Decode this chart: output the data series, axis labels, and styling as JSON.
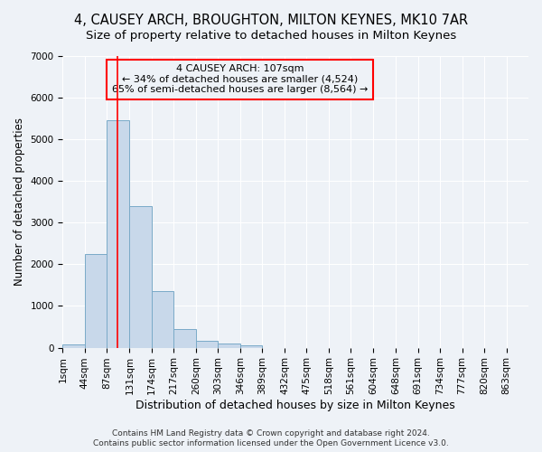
{
  "title": "4, CAUSEY ARCH, BROUGHTON, MILTON KEYNES, MK10 7AR",
  "subtitle": "Size of property relative to detached houses in Milton Keynes",
  "xlabel": "Distribution of detached houses by size in Milton Keynes",
  "ylabel": "Number of detached properties",
  "footnote1": "Contains HM Land Registry data © Crown copyright and database right 2024.",
  "footnote2": "Contains public sector information licensed under the Open Government Licence v3.0.",
  "annotation_line1": "4 CAUSEY ARCH: 107sqm",
  "annotation_line2": "← 34% of detached houses are smaller (4,524)",
  "annotation_line3": "65% of semi-detached houses are larger (8,564) →",
  "bar_color": "#c8d8ea",
  "bar_edge_color": "#7aaac8",
  "red_line_x": 107,
  "categories": [
    "1sqm",
    "44sqm",
    "87sqm",
    "131sqm",
    "174sqm",
    "217sqm",
    "260sqm",
    "303sqm",
    "346sqm",
    "389sqm",
    "432sqm",
    "475sqm",
    "518sqm",
    "561sqm",
    "604sqm",
    "648sqm",
    "691sqm",
    "734sqm",
    "777sqm",
    "820sqm",
    "863sqm"
  ],
  "bin_edges": [
    1,
    44,
    87,
    131,
    174,
    217,
    260,
    303,
    346,
    389,
    432,
    475,
    518,
    561,
    604,
    648,
    691,
    734,
    777,
    820,
    863,
    906
  ],
  "values": [
    75,
    2250,
    5450,
    3400,
    1350,
    450,
    175,
    110,
    60,
    0,
    0,
    0,
    0,
    0,
    0,
    0,
    0,
    0,
    0,
    0,
    0
  ],
  "ylim": [
    0,
    7000
  ],
  "yticks": [
    0,
    1000,
    2000,
    3000,
    4000,
    5000,
    6000,
    7000
  ],
  "background_color": "#eef2f7",
  "grid_color": "#ffffff",
  "title_fontsize": 10.5,
  "subtitle_fontsize": 9.5,
  "ylabel_fontsize": 8.5,
  "xlabel_fontsize": 9,
  "tick_fontsize": 7.5,
  "annotation_fontsize": 8,
  "footnote_fontsize": 6.5
}
